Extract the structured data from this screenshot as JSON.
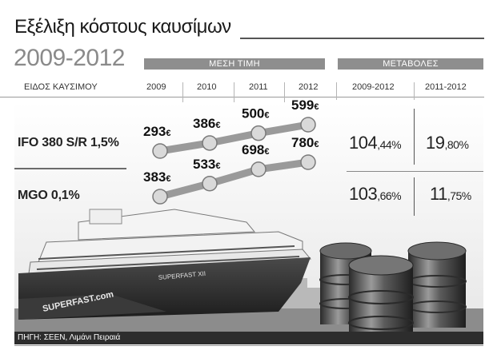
{
  "header": {
    "title": "Εξέλιξη κόστους καυσίμων",
    "subtitle": "2009-2012",
    "band_avg": "ΜΕΣΗ ΤΙΜΗ",
    "band_change": "ΜΕΤΑΒΟΛΕΣ",
    "col_fuel": "ΕΙΔΟΣ ΚΑΥΣΙΜΟΥ",
    "col_2009": "2009",
    "col_2010": "2010",
    "col_2011": "2011",
    "col_2012": "2012",
    "col_ch1": "2009-2012",
    "col_ch2": "2011-2012"
  },
  "rows": [
    {
      "label": "IFO 380 S/R 1,5%",
      "ch1_int": "104",
      "ch1_dec": ",44%",
      "ch2_int": "19",
      "ch2_dec": ",80%"
    },
    {
      "label": "MGO 0,1%",
      "ch1_int": "103",
      "ch1_dec": ",66%",
      "ch2_int": "11",
      "ch2_dec": ",75%"
    }
  ],
  "source": "ΠΗΓΗ: ΣΕΕΝ, Λιμάνι Πειραιά",
  "ship_hull_text": "SUPERFAST.com",
  "ship_name_text": "SUPERFAST XII",
  "colors": {
    "band": "#8e8e8e",
    "line": "#9a9a9a",
    "node": "#d9d9d9",
    "text": "#1a1a1a",
    "source_bg": "#2d2d2d"
  },
  "chart_data": {
    "type": "line",
    "categories": [
      "2009",
      "2010",
      "2011",
      "2012"
    ],
    "unit": "€",
    "series": [
      {
        "name": "IFO 380 S/R 1,5%",
        "values": [
          293,
          386,
          500,
          599
        ]
      },
      {
        "name": "MGO 0,1%",
        "values": [
          383,
          533,
          698,
          780
        ]
      }
    ],
    "changes": {
      "IFO 380 S/R 1,5%": {
        "2009-2012": 104.44,
        "2011-2012": 19.8
      },
      "MGO 0,1%": {
        "2009-2012": 103.66,
        "2011-2012": 11.75
      }
    }
  }
}
